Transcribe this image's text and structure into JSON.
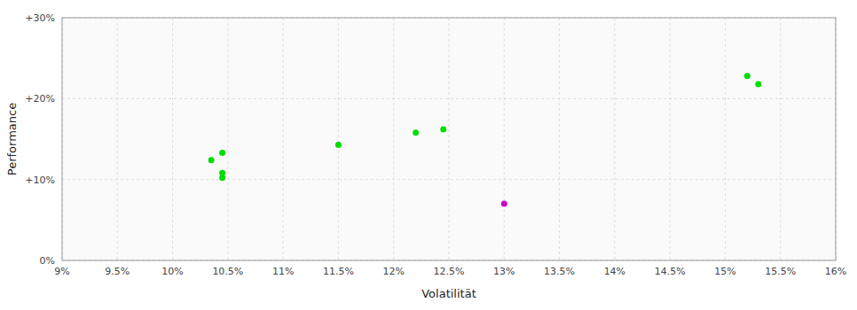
{
  "chart_data": {
    "type": "scatter",
    "xlabel": "Volatilität",
    "ylabel": "Performance",
    "xlim": [
      0.09,
      0.16
    ],
    "ylim": [
      0.0,
      0.3
    ],
    "xticks": [
      {
        "value": 0.09,
        "label": "9%"
      },
      {
        "value": 0.095,
        "label": "9.5%"
      },
      {
        "value": 0.1,
        "label": "10%"
      },
      {
        "value": 0.105,
        "label": "10.5%"
      },
      {
        "value": 0.11,
        "label": "11%"
      },
      {
        "value": 0.115,
        "label": "11.5%"
      },
      {
        "value": 0.12,
        "label": "12%"
      },
      {
        "value": 0.125,
        "label": "12.5%"
      },
      {
        "value": 0.13,
        "label": "13%"
      },
      {
        "value": 0.135,
        "label": "13.5%"
      },
      {
        "value": 0.14,
        "label": "14%"
      },
      {
        "value": 0.145,
        "label": "14.5%"
      },
      {
        "value": 0.15,
        "label": "15%"
      },
      {
        "value": 0.155,
        "label": "15.5%"
      },
      {
        "value": 0.16,
        "label": "16%"
      }
    ],
    "yticks": [
      {
        "value": 0.0,
        "label": "0%"
      },
      {
        "value": 0.1,
        "label": "+10%"
      },
      {
        "value": 0.2,
        "label": "+20%"
      },
      {
        "value": 0.3,
        "label": "+30%"
      }
    ],
    "grid": true,
    "series": [
      {
        "color": "#00dd00",
        "x": [
          0.1045,
          0.1035,
          0.1045,
          0.1045,
          0.115,
          0.122,
          0.1245,
          0.152,
          0.153
        ],
        "values": [
          0.133,
          0.124,
          0.108,
          0.102,
          0.143,
          0.158,
          0.162,
          0.228,
          0.218
        ]
      },
      {
        "color": "#cc00cc",
        "x": [
          0.13
        ],
        "values": [
          0.07
        ]
      }
    ]
  }
}
